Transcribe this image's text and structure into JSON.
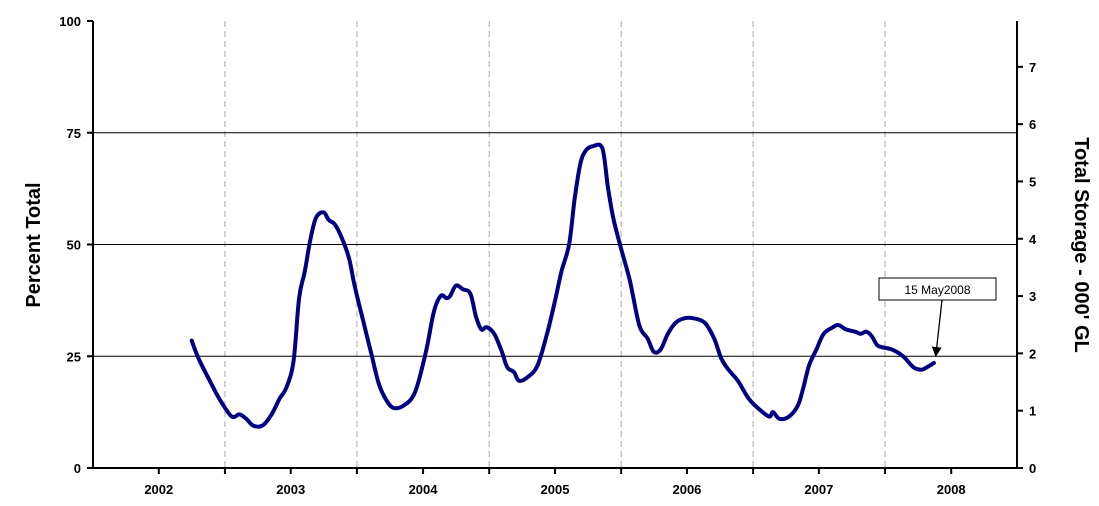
{
  "chart_data": {
    "type": "line",
    "title": "",
    "ylabel_left": "Percent Total",
    "ylabel_right": "Total Storage - 000' GL",
    "x_ticks": [
      "2002",
      "2003",
      "2004",
      "2005",
      "2006",
      "2007",
      "2008"
    ],
    "xlim": [
      "2002-01-01",
      "2008-12-31"
    ],
    "y_left_ticks": [
      "0",
      "25",
      "50",
      "75",
      "100"
    ],
    "y_left_lim": [
      0,
      100
    ],
    "y_right_ticks": [
      "0",
      "1",
      "2",
      "3",
      "4",
      "5",
      "6",
      "7"
    ],
    "y_right_lim": [
      0,
      7.8
    ],
    "grid": "horizontal solid at 25/50/75, vertical dashed at year boundaries",
    "line_color": "#000080",
    "series": [
      {
        "values": [
          [
            "2002-10-01",
            28.5
          ],
          [
            "2002-10-20",
            24.5
          ],
          [
            "2002-11-20",
            19.5
          ],
          [
            "2002-12-20",
            15.0
          ],
          [
            "2003-01-20",
            11.5
          ],
          [
            "2003-02-10",
            12.0
          ],
          [
            "2003-03-01",
            11.0
          ],
          [
            "2003-03-20",
            9.5
          ],
          [
            "2003-04-15",
            9.5
          ],
          [
            "2003-05-10",
            12.0
          ],
          [
            "2003-06-01",
            15.5
          ],
          [
            "2003-06-20",
            18.0
          ],
          [
            "2003-07-10",
            24.0
          ],
          [
            "2003-07-25",
            38.0
          ],
          [
            "2003-08-10",
            44.0
          ],
          [
            "2003-08-25",
            51.0
          ],
          [
            "2003-09-10",
            56.0
          ],
          [
            "2003-10-01",
            57.2
          ],
          [
            "2003-10-15",
            55.5
          ],
          [
            "2003-11-01",
            54.5
          ],
          [
            "2003-11-20",
            51.5
          ],
          [
            "2003-12-10",
            47.0
          ],
          [
            "2003-12-25",
            41.0
          ],
          [
            "2004-01-15",
            34.0
          ],
          [
            "2004-02-10",
            25.5
          ],
          [
            "2004-03-01",
            19.0
          ],
          [
            "2004-03-20",
            15.5
          ],
          [
            "2004-04-10",
            13.5
          ],
          [
            "2004-05-10",
            14.0
          ],
          [
            "2004-06-10",
            17.0
          ],
          [
            "2004-07-10",
            26.0
          ],
          [
            "2004-08-01",
            35.0
          ],
          [
            "2004-08-20",
            38.5
          ],
          [
            "2004-09-05",
            38.0
          ],
          [
            "2004-09-15",
            38.5
          ],
          [
            "2004-10-01",
            40.8
          ],
          [
            "2004-10-20",
            40.0
          ],
          [
            "2004-11-10",
            39.0
          ],
          [
            "2004-11-25",
            34.0
          ],
          [
            "2004-12-10",
            31.0
          ],
          [
            "2004-12-25",
            31.5
          ],
          [
            "2005-01-15",
            30.0
          ],
          [
            "2005-02-05",
            26.0
          ],
          [
            "2005-02-20",
            22.5
          ],
          [
            "2005-03-10",
            21.5
          ],
          [
            "2005-03-25",
            19.5
          ],
          [
            "2005-04-20",
            20.5
          ],
          [
            "2005-05-15",
            23.0
          ],
          [
            "2005-06-10",
            30.0
          ],
          [
            "2005-07-01",
            37.0
          ],
          [
            "2005-07-20",
            44.0
          ],
          [
            "2005-08-10",
            50.0
          ],
          [
            "2005-08-25",
            60.0
          ],
          [
            "2005-09-10",
            68.0
          ],
          [
            "2005-09-25",
            71.0
          ],
          [
            "2005-10-15",
            72.0
          ],
          [
            "2005-11-10",
            71.5
          ],
          [
            "2005-11-25",
            63.0
          ],
          [
            "2005-12-10",
            56.0
          ],
          [
            "2006-01-01",
            49.0
          ],
          [
            "2006-01-25",
            42.0
          ],
          [
            "2006-02-20",
            32.0
          ],
          [
            "2006-03-15",
            29.0
          ],
          [
            "2006-04-01",
            26.0
          ],
          [
            "2006-04-20",
            26.5
          ],
          [
            "2006-05-10",
            30.0
          ],
          [
            "2006-06-01",
            32.5
          ],
          [
            "2006-06-25",
            33.5
          ],
          [
            "2006-07-20",
            33.5
          ],
          [
            "2006-08-20",
            32.5
          ],
          [
            "2006-09-15",
            29.0
          ],
          [
            "2006-10-05",
            24.5
          ],
          [
            "2006-10-25",
            22.0
          ],
          [
            "2006-11-20",
            19.5
          ],
          [
            "2006-12-20",
            15.5
          ],
          [
            "2007-01-20",
            13.0
          ],
          [
            "2007-02-15",
            11.5
          ],
          [
            "2007-02-25",
            12.5
          ],
          [
            "2007-03-15",
            11.0
          ],
          [
            "2007-04-10",
            11.5
          ],
          [
            "2007-05-05",
            14.0
          ],
          [
            "2007-05-20",
            18.0
          ],
          [
            "2007-06-05",
            23.0
          ],
          [
            "2007-06-25",
            26.5
          ],
          [
            "2007-07-15",
            30.0
          ],
          [
            "2007-08-10",
            31.5
          ],
          [
            "2007-08-25",
            32.0
          ],
          [
            "2007-09-15",
            31.0
          ],
          [
            "2007-10-10",
            30.5
          ],
          [
            "2007-10-25",
            30.0
          ],
          [
            "2007-11-10",
            30.5
          ],
          [
            "2007-11-25",
            29.5
          ],
          [
            "2007-12-10",
            27.5
          ],
          [
            "2007-12-25",
            27.0
          ],
          [
            "2008-01-20",
            26.5
          ],
          [
            "2008-02-20",
            25.0
          ],
          [
            "2008-03-20",
            22.5
          ],
          [
            "2008-04-10",
            22.0
          ],
          [
            "2008-04-25",
            22.5
          ],
          [
            "2008-05-15",
            23.5
          ]
        ]
      }
    ],
    "annotations": [
      {
        "text": "15 May2008",
        "target": [
          "2008-05-15",
          23.5
        ]
      }
    ]
  }
}
